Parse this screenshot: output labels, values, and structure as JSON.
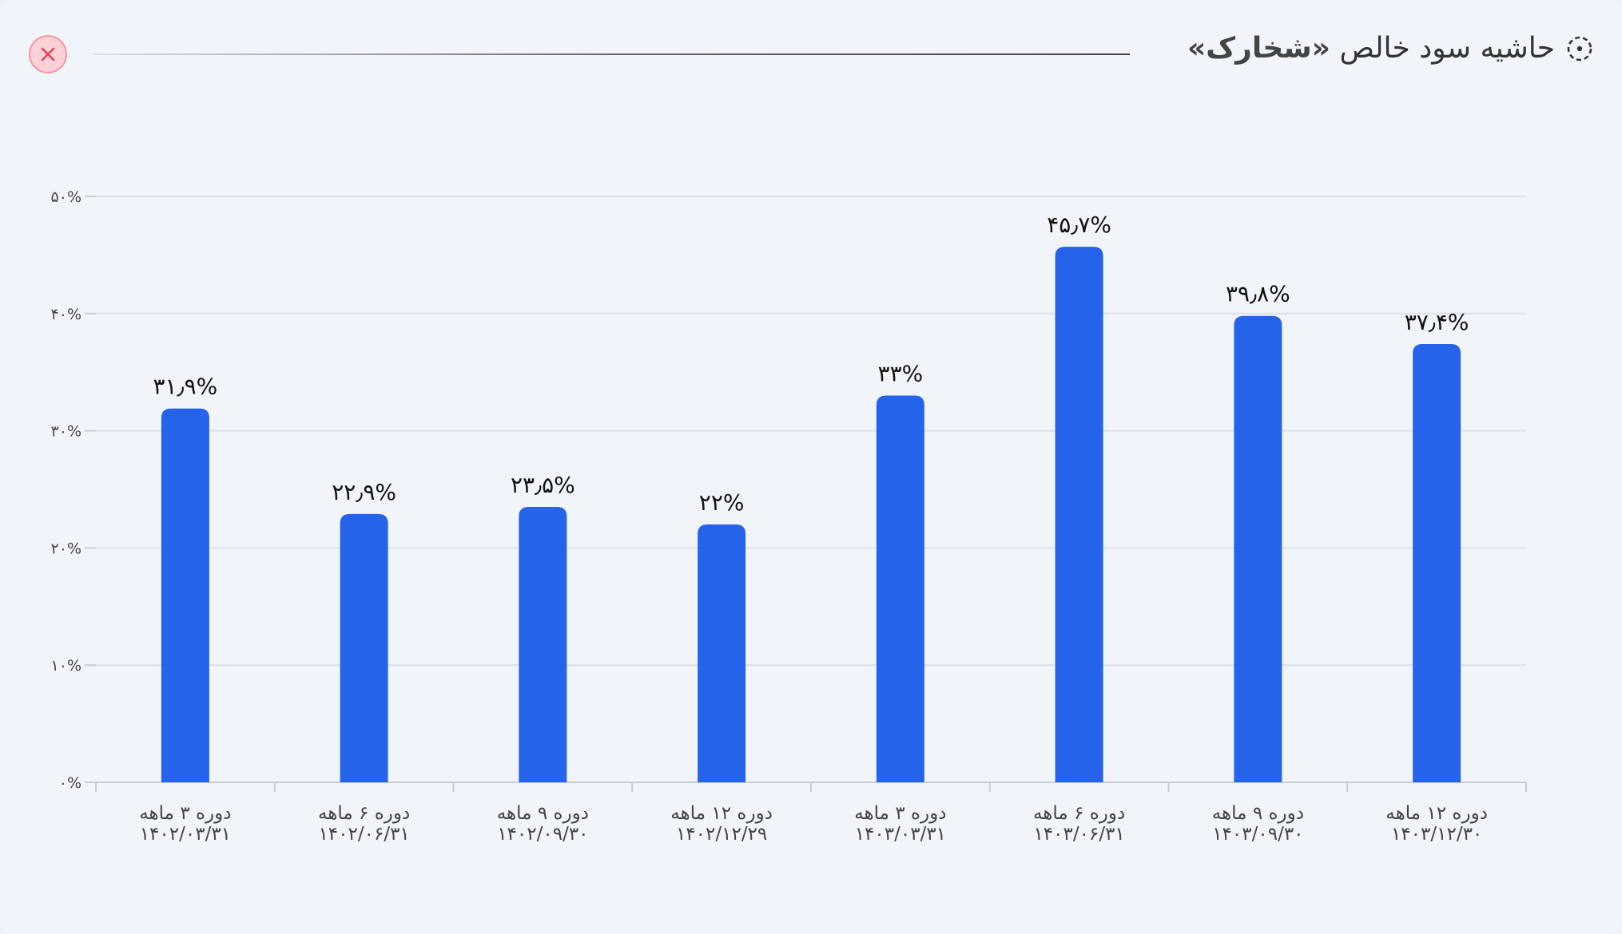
{
  "header": {
    "title_prefix": "حاشیه سود خالص",
    "symbol": "«شخارک»",
    "loading_icon": "dashed-circle-icon",
    "close_icon": "close-icon"
  },
  "colors": {
    "bar": "#2563eb",
    "grid": "#dde2e8",
    "axis": "#c7ccd3",
    "close_bg": "#fbd0d6",
    "close_x": "#e2435a"
  },
  "chart_data": {
    "type": "bar",
    "title": "حاشیه سود خالص «شخارک»",
    "xlabel": "",
    "ylabel": "",
    "ylim": [
      0,
      50
    ],
    "y_ticks": [
      {
        "value": 0,
        "label": "۰%"
      },
      {
        "value": 10,
        "label": "۱۰%"
      },
      {
        "value": 20,
        "label": "۲۰%"
      },
      {
        "value": 30,
        "label": "۳۰%"
      },
      {
        "value": 40,
        "label": "۴۰%"
      },
      {
        "value": 50,
        "label": "۵۰%"
      }
    ],
    "grid": true,
    "categories": [
      {
        "line1": "دوره ۳ ماهه",
        "line2": "۱۴۰۲/۰۳/۳۱"
      },
      {
        "line1": "دوره ۶ ماهه",
        "line2": "۱۴۰۲/۰۶/۳۱"
      },
      {
        "line1": "دوره ۹ ماهه",
        "line2": "۱۴۰۲/۰۹/۳۰"
      },
      {
        "line1": "دوره ۱۲ ماهه",
        "line2": "۱۴۰۲/۱۲/۲۹"
      },
      {
        "line1": "دوره ۳ ماهه",
        "line2": "۱۴۰۳/۰۳/۳۱"
      },
      {
        "line1": "دوره ۶ ماهه",
        "line2": "۱۴۰۳/۰۶/۳۱"
      },
      {
        "line1": "دوره ۹ ماهه",
        "line2": "۱۴۰۳/۰۹/۳۰"
      },
      {
        "line1": "دوره ۱۲ ماهه",
        "line2": "۱۴۰۳/۱۲/۳۰"
      }
    ],
    "values": [
      31.9,
      22.9,
      23.5,
      22,
      33,
      45.7,
      39.8,
      37.4
    ],
    "data_labels": [
      "۳۱٫۹%",
      "۲۲٫۹%",
      "۲۳٫۵%",
      "۲۲%",
      "۳۳%",
      "۴۵٫۷%",
      "۳۹٫۸%",
      "۳۷٫۴%"
    ]
  }
}
